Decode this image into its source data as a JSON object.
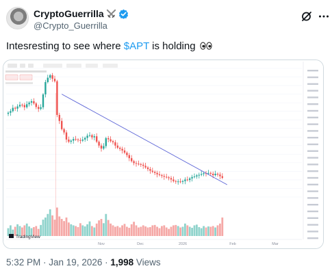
{
  "tweet": {
    "display_name": "CryptoGuerrilla",
    "handle": "@Crypto_Guerrilla",
    "text_before": "Intesresting to see where ",
    "cashtag": "$APT",
    "text_after": " is holding",
    "emoji": "eyes",
    "time": "5:32 PM",
    "separator": " · ",
    "date": "Jan 19, 2026",
    "views_count": "1,998",
    "views_label": " Views"
  },
  "icons": {
    "name_badge_1": "crossed-swords-icon",
    "name_badge_2": "verified-badge-icon",
    "top_right_1": "grok-icon",
    "top_right_2": "more-icon"
  },
  "chart_ui": {
    "watermark": "TradingView",
    "x_ticks": [
      "Nov",
      "Dec",
      "2026",
      "Feb",
      "Mar"
    ]
  },
  "chart_data": {
    "type": "candlestick",
    "series_values": [
      4.68,
      4.74,
      4.86,
      4.83,
      4.91,
      4.97,
      4.96,
      4.88,
      4.99,
      5.05,
      5.1,
      5.02,
      4.89,
      4.82,
      4.88,
      5.35,
      5.8,
      5.96,
      6.05,
      5.92,
      5.83,
      4.6,
      4.38,
      4.08,
      3.96,
      3.7,
      3.62,
      3.66,
      3.72,
      3.7,
      3.68,
      3.66,
      3.7,
      3.76,
      3.84,
      3.86,
      3.78,
      3.82,
      3.62,
      3.48,
      3.37,
      3.46,
      3.75,
      3.71,
      3.64,
      3.6,
      3.48,
      3.4,
      3.36,
      3.3,
      3.22,
      3.13,
      3.02,
      2.91,
      2.84,
      2.82,
      2.8,
      2.78,
      2.74,
      2.68,
      2.62,
      2.56,
      2.52,
      2.48,
      2.43,
      2.4,
      2.37,
      2.34,
      2.32,
      2.29,
      2.24,
      2.18,
      2.16,
      2.17,
      2.15,
      2.18,
      2.24,
      2.22,
      2.28,
      2.33,
      2.35,
      2.39,
      2.41,
      2.44,
      2.47,
      2.46,
      2.48,
      2.45,
      2.4,
      2.45,
      2.42,
      2.36,
      2.3
    ],
    "volume": [
      0.22,
      0.3,
      0.18,
      0.26,
      0.33,
      0.28,
      0.24,
      0.3,
      0.35,
      0.27,
      0.22,
      0.25,
      0.28,
      0.2,
      0.31,
      0.46,
      0.52,
      0.62,
      0.75,
      0.58,
      0.46,
      0.8,
      0.55,
      0.48,
      0.42,
      0.52,
      0.38,
      0.33,
      0.3,
      0.28,
      0.25,
      0.36,
      0.3,
      0.27,
      0.33,
      0.41,
      0.28,
      0.24,
      0.35,
      0.44,
      0.48,
      0.36,
      0.62,
      0.45,
      0.35,
      0.3,
      0.26,
      0.28,
      0.24,
      0.3,
      0.34,
      0.26,
      0.23,
      0.33,
      0.4,
      0.3,
      0.24,
      0.26,
      0.3,
      0.27,
      0.24,
      0.25,
      0.3,
      0.31,
      0.26,
      0.22,
      0.28,
      0.3,
      0.24,
      0.2,
      0.26,
      0.3,
      0.31,
      0.28,
      0.24,
      0.26,
      0.35,
      0.3,
      0.26,
      0.23,
      0.3,
      0.32,
      0.25,
      0.22,
      0.28,
      0.24,
      0.27,
      0.26,
      0.28,
      0.24,
      0.3,
      0.35,
      0.52
    ],
    "trendline": {
      "from": 5.36,
      "to": 2.05
    },
    "x_ticks": [
      "Nov",
      "Dec",
      "2026",
      "Feb",
      "Mar"
    ]
  },
  "colors": {
    "cashtag": "#1d9bf0",
    "up": "#26a69a",
    "down": "#ef5350",
    "up_volume": "#8fd3cc",
    "down_volume": "#f5a8a6",
    "trendline": "#5a63d6",
    "verified": "#1d9bf0"
  }
}
